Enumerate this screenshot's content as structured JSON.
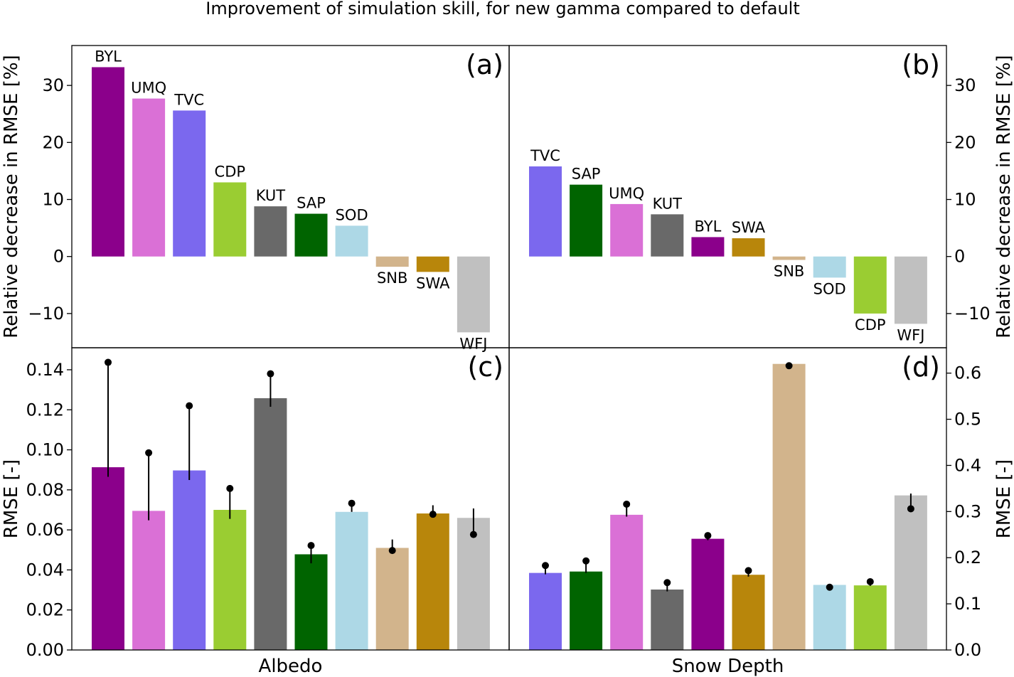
{
  "figure_title": "Improvement of simulation skill, for new gamma compared to default",
  "colors": {
    "BYL": "#8b008b",
    "UMQ": "#da70d6",
    "TVC": "#7b68ee",
    "CDP": "#9acd32",
    "KUT": "#696969",
    "SAP": "#006400",
    "SOD": "#add8e6",
    "SNB": "#d2b48c",
    "SWA": "#b8860b",
    "WFJ": "#c0c0c0"
  },
  "chart_data": [
    {
      "panel": "(a)",
      "type": "bar",
      "ylabel": "Relative decrease in RMSE [%]",
      "ylim": [
        -16,
        37
      ],
      "yticks": [
        -10,
        0,
        10,
        20,
        30
      ],
      "ytick_labels": [
        "−10",
        "0",
        "10",
        "20",
        "30"
      ],
      "categories": [
        "BYL",
        "UMQ",
        "TVC",
        "CDP",
        "KUT",
        "SAP",
        "SOD",
        "SNB",
        "SWA",
        "WFJ"
      ],
      "values": [
        33.2,
        27.7,
        25.6,
        13.0,
        8.8,
        7.5,
        5.4,
        -1.8,
        -2.7,
        -13.3
      ]
    },
    {
      "panel": "(b)",
      "type": "bar",
      "ylabel": "Relative decrease in RMSE [%]",
      "ylim": [
        -16,
        37
      ],
      "yticks": [
        -10,
        0,
        10,
        20,
        30
      ],
      "ytick_labels": [
        "−10",
        "0",
        "10",
        "20",
        "30"
      ],
      "categories": [
        "TVC",
        "SAP",
        "UMQ",
        "KUT",
        "BYL",
        "SWA",
        "SNB",
        "SOD",
        "CDP",
        "WFJ"
      ],
      "values": [
        15.8,
        12.6,
        9.2,
        7.4,
        3.4,
        3.2,
        -0.6,
        -3.7,
        -10.0,
        -11.8
      ]
    },
    {
      "panel": "(c)",
      "type": "bar",
      "xlabel": "Albedo",
      "ylabel": "RMSE [-]",
      "ylim": [
        0.0,
        0.151
      ],
      "yticks": [
        0.0,
        0.02,
        0.04,
        0.06,
        0.08,
        0.1,
        0.12,
        0.14
      ],
      "ytick_labels": [
        "0.00",
        "0.02",
        "0.04",
        "0.06",
        "0.08",
        "0.10",
        "0.12",
        "0.14"
      ],
      "categories": [
        "BYL",
        "UMQ",
        "TVC",
        "CDP",
        "KUT",
        "SAP",
        "SOD",
        "SNB",
        "SWA",
        "WFJ"
      ],
      "values": [
        0.0913,
        0.0695,
        0.0897,
        0.07,
        0.1258,
        0.0478,
        0.069,
        0.051,
        0.0682,
        0.066
      ],
      "default_values": [
        0.1437,
        0.0985,
        0.122,
        0.0807,
        0.138,
        0.0522,
        0.0733,
        0.0497,
        0.0678,
        0.0577
      ],
      "line_extents": [
        [
          0.0865,
          0.1437
        ],
        [
          0.0648,
          0.0985
        ],
        [
          0.0849,
          0.122
        ],
        [
          0.0655,
          0.0807
        ],
        [
          0.1215,
          0.138
        ],
        [
          0.0433,
          0.0522
        ],
        [
          0.069,
          0.0733
        ],
        [
          0.0497,
          0.0552
        ],
        [
          0.0678,
          0.0723
        ],
        [
          0.0577,
          0.0707
        ]
      ]
    },
    {
      "panel": "(d)",
      "type": "bar",
      "xlabel": "Snow Depth",
      "ylabel": "RMSE [-]",
      "ylim": [
        0.0,
        0.655
      ],
      "yticks": [
        0.0,
        0.1,
        0.2,
        0.3,
        0.4,
        0.5,
        0.6
      ],
      "ytick_labels": [
        "0.0",
        "0.1",
        "0.2",
        "0.3",
        "0.4",
        "0.5",
        "0.6"
      ],
      "categories": [
        "TVC",
        "SAP",
        "UMQ",
        "KUT",
        "BYL",
        "SWA",
        "SNB",
        "SOD",
        "CDP",
        "WFJ"
      ],
      "values": [
        0.167,
        0.17,
        0.293,
        0.131,
        0.241,
        0.163,
        0.62,
        0.141,
        0.14,
        0.335
      ],
      "default_values": [
        0.183,
        0.193,
        0.316,
        0.146,
        0.248,
        0.172,
        0.616,
        0.136,
        0.148,
        0.306
      ],
      "line_extents": [
        [
          0.164,
          0.183
        ],
        [
          0.167,
          0.193
        ],
        [
          0.289,
          0.316
        ],
        [
          0.127,
          0.146
        ],
        [
          0.238,
          0.248
        ],
        [
          0.159,
          0.172
        ],
        [
          0.616,
          0.62
        ],
        [
          0.136,
          0.141
        ],
        [
          0.139,
          0.148
        ],
        [
          0.306,
          0.339
        ]
      ]
    }
  ]
}
